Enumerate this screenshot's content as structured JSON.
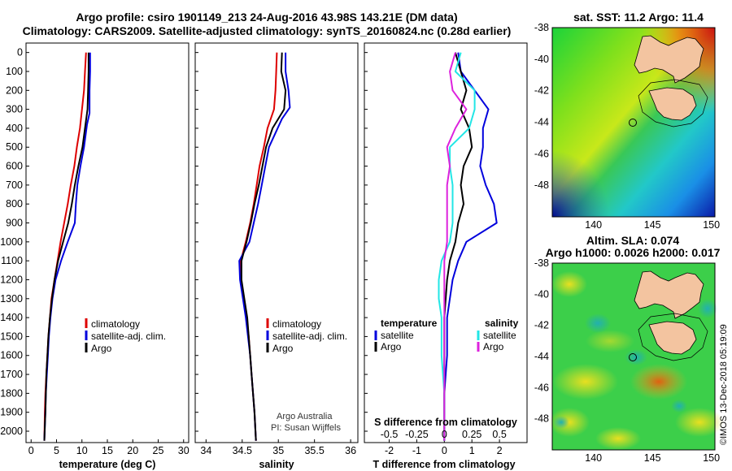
{
  "header": {
    "title_line1": "Argo profile: csiro 1901149_213 24-Aug-2016 43.98S 143.21E (DM data)",
    "title_line2": "Climatology: CARS2009. Satellite-adjusted climatology: synTS_20160824.nc (0.28d earlier)"
  },
  "colors": {
    "climatology": "#dd0000",
    "satellite_adj": "#0000dd",
    "argo": "#000000",
    "sat_salinity": "#22e6e6",
    "argo_salinity": "#dd22dd",
    "land": "#f3c4a0"
  },
  "chart_data": [
    {
      "type": "line",
      "xlabel": "temperature (deg C)",
      "y_ticks": [
        "0",
        "100",
        "200",
        "300",
        "400",
        "500",
        "600",
        "700",
        "800",
        "900",
        "1000",
        "1100",
        "1200",
        "1300",
        "1400",
        "1500",
        "1600",
        "1700",
        "1800",
        "1900",
        "2000"
      ],
      "x_ticks": [
        "0",
        "5",
        "10",
        "15",
        "20",
        "25",
        "30"
      ],
      "xlim": [
        -1,
        31
      ],
      "ylim": [
        2060,
        -50
      ],
      "legend": [
        "climatology",
        "satellite-adj. clim.",
        "Argo"
      ],
      "series": [
        {
          "name": "climatology",
          "color": "climatology",
          "x": [
            10.8,
            10.6,
            10.4,
            10.0,
            9.6,
            9.0,
            8.5,
            7.8,
            7.2,
            6.5,
            5.8,
            5.2,
            4.6,
            4.0,
            3.7,
            3.4,
            3.2,
            3.0,
            2.8,
            2.7,
            2.6
          ],
          "y": [
            0,
            100,
            200,
            300,
            400,
            500,
            600,
            700,
            800,
            900,
            1000,
            1100,
            1200,
            1300,
            1400,
            1500,
            1600,
            1700,
            1800,
            1900,
            2050
          ]
        },
        {
          "name": "satellite-adj. clim.",
          "color": "satellite_adj",
          "x": [
            11.6,
            11.6,
            11.5,
            11.5,
            11.0,
            10.4,
            9.7,
            9.1,
            8.8,
            8.6,
            7.2,
            5.9,
            4.8,
            4.2,
            3.8,
            3.5,
            3.3,
            3.1,
            2.9,
            2.8,
            2.6
          ],
          "y": [
            0,
            100,
            200,
            320,
            380,
            500,
            600,
            700,
            800,
            900,
            1000,
            1100,
            1200,
            1300,
            1400,
            1500,
            1600,
            1700,
            1800,
            1900,
            2050
          ]
        },
        {
          "name": "Argo",
          "color": "argo",
          "x": [
            11.3,
            11.3,
            11.2,
            11.1,
            10.6,
            10.1,
            9.3,
            8.6,
            8.0,
            7.3,
            6.3,
            5.3,
            4.6,
            4.1,
            3.7,
            3.4,
            3.2,
            3.0,
            2.9,
            2.8,
            2.6
          ],
          "y": [
            0,
            100,
            200,
            300,
            400,
            500,
            600,
            700,
            800,
            900,
            1000,
            1100,
            1200,
            1300,
            1400,
            1500,
            1600,
            1700,
            1800,
            1900,
            2050
          ]
        }
      ]
    },
    {
      "type": "line",
      "xlabel": "salinity",
      "x_ticks": [
        "34",
        "34.5",
        "35",
        "35.5",
        "36"
      ],
      "xlim": [
        33.85,
        36.1
      ],
      "ylim": [
        2060,
        -50
      ],
      "legend": [
        "climatology",
        "satellite-adj. clim.",
        "Argo"
      ],
      "note_line1": "Argo Australia",
      "note_line2": "PI: Susan Wijffels",
      "series": [
        {
          "name": "climatology",
          "color": "climatology",
          "x": [
            34.98,
            34.97,
            34.96,
            34.94,
            34.85,
            34.8,
            34.74,
            34.7,
            34.66,
            34.61,
            34.55,
            34.48,
            34.48,
            34.52,
            34.56,
            34.59,
            34.61,
            34.63,
            34.65,
            34.67,
            34.69
          ],
          "y": [
            0,
            100,
            200,
            300,
            400,
            500,
            600,
            700,
            800,
            900,
            1000,
            1100,
            1200,
            1300,
            1400,
            1500,
            1600,
            1700,
            1800,
            1900,
            2050
          ]
        },
        {
          "name": "satellite-adj. clim.",
          "color": "satellite_adj",
          "x": [
            35.1,
            35.1,
            35.14,
            35.16,
            35.05,
            34.87,
            34.82,
            34.77,
            34.72,
            34.66,
            34.6,
            34.46,
            34.47,
            34.51,
            34.55,
            34.58,
            34.61,
            34.63,
            34.65,
            34.67,
            34.69
          ],
          "y": [
            0,
            100,
            200,
            290,
            350,
            500,
            600,
            700,
            800,
            900,
            1000,
            1100,
            1200,
            1300,
            1400,
            1500,
            1600,
            1700,
            1800,
            1900,
            2050
          ]
        },
        {
          "name": "Argo",
          "color": "argo",
          "x": [
            35.05,
            35.04,
            35.1,
            35.08,
            34.92,
            34.83,
            34.78,
            34.73,
            34.67,
            34.62,
            34.56,
            34.49,
            34.49,
            34.53,
            34.57,
            34.59,
            34.61,
            34.63,
            34.65,
            34.67,
            34.69
          ],
          "y": [
            0,
            100,
            200,
            300,
            400,
            500,
            600,
            700,
            800,
            900,
            1000,
            1100,
            1200,
            1300,
            1400,
            1500,
            1600,
            1700,
            1800,
            1900,
            2050
          ]
        }
      ]
    },
    {
      "type": "line",
      "xlabel": "T difference from climatology",
      "x_ticks": [
        "-2",
        "-1",
        "0",
        "1",
        "2"
      ],
      "x2_label": "S difference from climatology",
      "x2_ticks": [
        "-0.5",
        "-0.25",
        "0",
        "0.25",
        "0.5"
      ],
      "xlim": [
        -2.9,
        3.0
      ],
      "ylim": [
        2060,
        -50
      ],
      "legend_temperature": "temperature",
      "legend_salinity": "salinity",
      "legend_items_t": [
        "satellite",
        "Argo"
      ],
      "legend_items_s": [
        "satellite",
        "Argo"
      ],
      "series": [
        {
          "name": "T satellite",
          "color": "satellite_adj",
          "x": [
            0.5,
            0.6,
            1.1,
            1.6,
            1.4,
            1.4,
            1.3,
            1.5,
            1.8,
            1.9,
            0.8,
            0.5,
            0.3,
            0.2,
            0.1,
            0.1,
            0.1,
            0.05,
            0.0,
            0.0,
            0.0
          ],
          "y": [
            0,
            100,
            200,
            300,
            400,
            500,
            600,
            700,
            800,
            900,
            1000,
            1100,
            1200,
            1300,
            1400,
            1500,
            1600,
            1700,
            1800,
            1900,
            2050
          ]
        },
        {
          "name": "T Argo",
          "color": "argo",
          "x": [
            0.4,
            0.6,
            0.8,
            0.6,
            0.9,
            1.0,
            0.7,
            0.6,
            0.7,
            0.5,
            0.4,
            0.2,
            0.1,
            0.05,
            0.0,
            0.0,
            0.0,
            0.0,
            0.0,
            0.0,
            0.0
          ],
          "y": [
            0,
            100,
            200,
            300,
            400,
            500,
            600,
            700,
            800,
            900,
            1000,
            1100,
            1200,
            1300,
            1400,
            1500,
            1600,
            1700,
            1800,
            1900,
            2050
          ]
        },
        {
          "name": "S satellite",
          "color": "sat_salinity",
          "x": [
            0.6,
            0.4,
            1.1,
            1.1,
            0.9,
            0.2,
            0.2,
            0.3,
            0.3,
            0.3,
            0.2,
            -0.1,
            -0.2,
            -0.2,
            -0.1,
            -0.1,
            -0.1,
            -0.05,
            0.0,
            0.0,
            0.0
          ],
          "y": [
            0,
            100,
            200,
            300,
            400,
            500,
            600,
            700,
            800,
            900,
            1000,
            1100,
            1200,
            1300,
            1400,
            1500,
            1600,
            1700,
            1800,
            1900,
            2050
          ]
        },
        {
          "name": "S Argo",
          "color": "argo_salinity",
          "x": [
            0.4,
            0.2,
            0.3,
            0.8,
            0.4,
            0.1,
            0.2,
            0.1,
            0.1,
            0.1,
            0.1,
            0.0,
            0.0,
            0.0,
            0.0,
            0.0,
            0.0,
            0.0,
            0.0,
            0.0,
            0.0
          ],
          "y": [
            0,
            100,
            200,
            300,
            400,
            500,
            600,
            700,
            800,
            900,
            1000,
            1100,
            1200,
            1300,
            1400,
            1500,
            1600,
            1700,
            1800,
            1900,
            2050
          ]
        }
      ]
    },
    {
      "type": "heatmap",
      "title": "sat. SST: 11.2  Argo: 11.4",
      "x_ticks": [
        "140",
        "145",
        "150"
      ],
      "y_ticks": [
        "-38",
        "-40",
        "-42",
        "-44",
        "-46",
        "-48"
      ],
      "argo_position": [
        143.21,
        -43.98
      ]
    },
    {
      "type": "heatmap",
      "title_line1": "Altim. SLA: 0.074",
      "title_line2": "Argo h1000: 0.0026 h2000: 0.017",
      "x_ticks": [
        "140",
        "145",
        "150"
      ],
      "y_ticks": [
        "-38",
        "-40",
        "-42",
        "-44",
        "-46",
        "-48"
      ],
      "argo_position": [
        143.21,
        -43.98
      ]
    }
  ],
  "footer": {
    "watermark": "©IMOS 13-Dec-2018 05:19:09"
  }
}
